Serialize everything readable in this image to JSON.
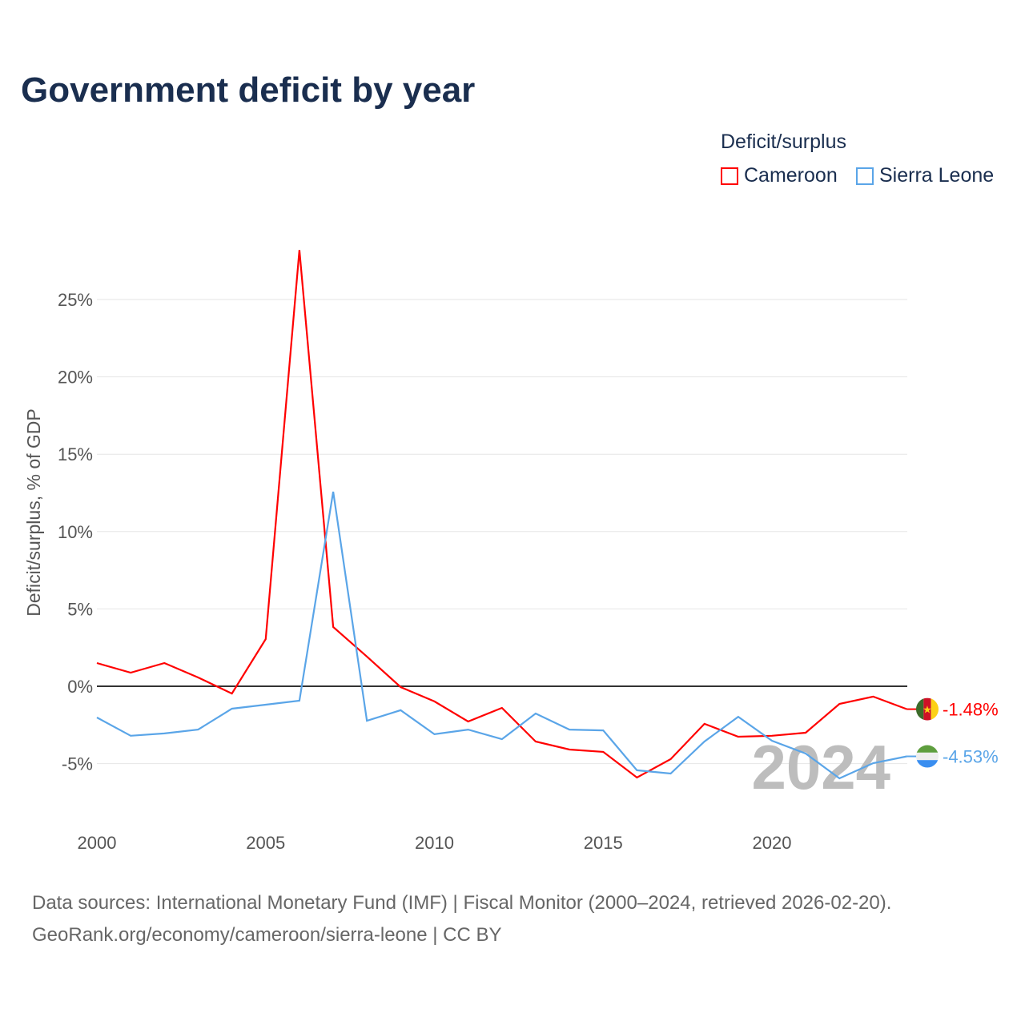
{
  "chart_data": {
    "type": "line",
    "title": "Government deficit by year",
    "ylabel": "Deficit/surplus, % of GDP",
    "xlabel": "",
    "legend_title": "Deficit/surplus",
    "legend_position": "top-right",
    "xlim": [
      2000,
      2024
    ],
    "ylim": [
      -8.5,
      28.5
    ],
    "x_ticks": [
      2000,
      2005,
      2010,
      2015,
      2020
    ],
    "x_tick_labels": [
      "2000",
      "2005",
      "2010",
      "2015",
      "2020"
    ],
    "y_ticks": [
      -5,
      0,
      5,
      10,
      15,
      20,
      25
    ],
    "y_tick_labels": [
      "-5%",
      "0%",
      "5%",
      "10%",
      "15%",
      "20%",
      "25%"
    ],
    "watermark_year": "2024",
    "x": [
      2000,
      2001,
      2002,
      2003,
      2004,
      2005,
      2006,
      2007,
      2008,
      2009,
      2010,
      2011,
      2012,
      2013,
      2014,
      2015,
      2016,
      2017,
      2018,
      2019,
      2020,
      2021,
      2022,
      2023,
      2024
    ],
    "series": [
      {
        "name": "Cameroon",
        "color": "#ff0000",
        "end_label": "-1.48%",
        "values": [
          1.5,
          0.88,
          1.5,
          0.57,
          -0.47,
          3.05,
          28.2,
          3.83,
          1.92,
          -0.05,
          -0.98,
          -2.28,
          -1.4,
          -3.57,
          -4.09,
          -4.24,
          -5.9,
          -4.71,
          -2.43,
          -3.26,
          -3.2,
          -3.0,
          -1.14,
          -0.67,
          -1.48
        ]
      },
      {
        "name": "Sierra Leone",
        "color": "#5aa5e8",
        "end_label": "-4.53%",
        "values": [
          -2.02,
          -3.2,
          -3.05,
          -2.8,
          -1.45,
          -1.19,
          -0.93,
          12.58,
          -2.23,
          -1.55,
          -3.1,
          -2.8,
          -3.42,
          -1.76,
          -2.8,
          -2.85,
          -5.43,
          -5.64,
          -3.57,
          -1.97,
          -3.52,
          -4.35,
          -5.95,
          -4.97,
          -4.53
        ]
      }
    ]
  },
  "footer": {
    "line1": "Data sources: International Monetary Fund (IMF) | Fiscal Monitor (2000–2024, retrieved 2026-02-20).",
    "line2": "GeoRank.org/economy/cameroon/sierra-leone | CC BY"
  }
}
